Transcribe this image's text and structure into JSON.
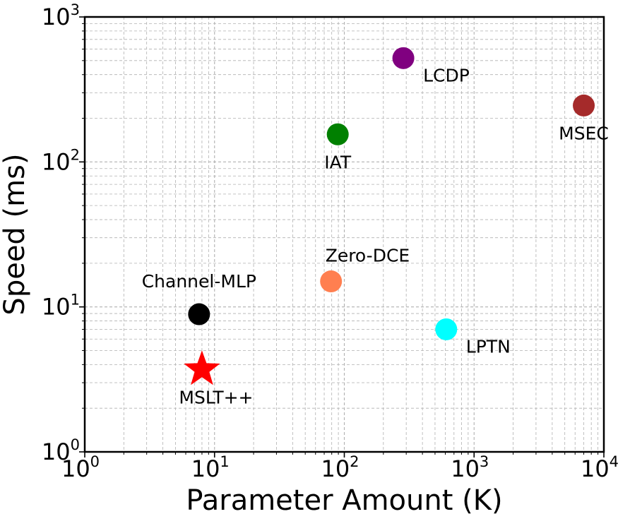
{
  "chart_data": {
    "type": "scatter",
    "title": "",
    "xlabel": "Parameter Amount (K)",
    "ylabel": "Speed (ms)",
    "xscale": "log",
    "yscale": "log",
    "xlim": [
      1,
      10000
    ],
    "ylim": [
      1,
      1000
    ],
    "grid": true,
    "x_ticks": [
      {
        "base": "10",
        "exp": "0",
        "value": 1
      },
      {
        "base": "10",
        "exp": "1",
        "value": 10
      },
      {
        "base": "10",
        "exp": "2",
        "value": 100
      },
      {
        "base": "10",
        "exp": "3",
        "value": 1000
      },
      {
        "base": "10",
        "exp": "4",
        "value": 10000
      }
    ],
    "y_ticks": [
      {
        "base": "10",
        "exp": "0",
        "value": 1
      },
      {
        "base": "10",
        "exp": "1",
        "value": 10
      },
      {
        "base": "10",
        "exp": "2",
        "value": 100
      },
      {
        "base": "10",
        "exp": "3",
        "value": 1000
      }
    ],
    "points": [
      {
        "label": "MSLT++",
        "x": 8,
        "y": 3.7,
        "color": "#ff0000",
        "marker": "star",
        "label_pos": "below"
      },
      {
        "label": "Channel-MLP",
        "x": 7.6,
        "y": 8.9,
        "color": "#000000",
        "marker": "circle",
        "label_pos": "above"
      },
      {
        "label": "Zero-DCE",
        "x": 79,
        "y": 15,
        "color": "#ff7f50",
        "marker": "circle",
        "label_pos": "above-right"
      },
      {
        "label": "LPTN",
        "x": 610,
        "y": 7,
        "color": "#00ffff",
        "marker": "circle",
        "label_pos": "below-right"
      },
      {
        "label": "IAT",
        "x": 89,
        "y": 155,
        "color": "#008000",
        "marker": "circle",
        "label_pos": "below"
      },
      {
        "label": "LCDP",
        "x": 285,
        "y": 520,
        "color": "#800080",
        "marker": "circle",
        "label_pos": "below-right"
      },
      {
        "label": "MSEC",
        "x": 7000,
        "y": 245,
        "color": "#a52a2a",
        "marker": "circle",
        "label_pos": "below"
      }
    ]
  }
}
